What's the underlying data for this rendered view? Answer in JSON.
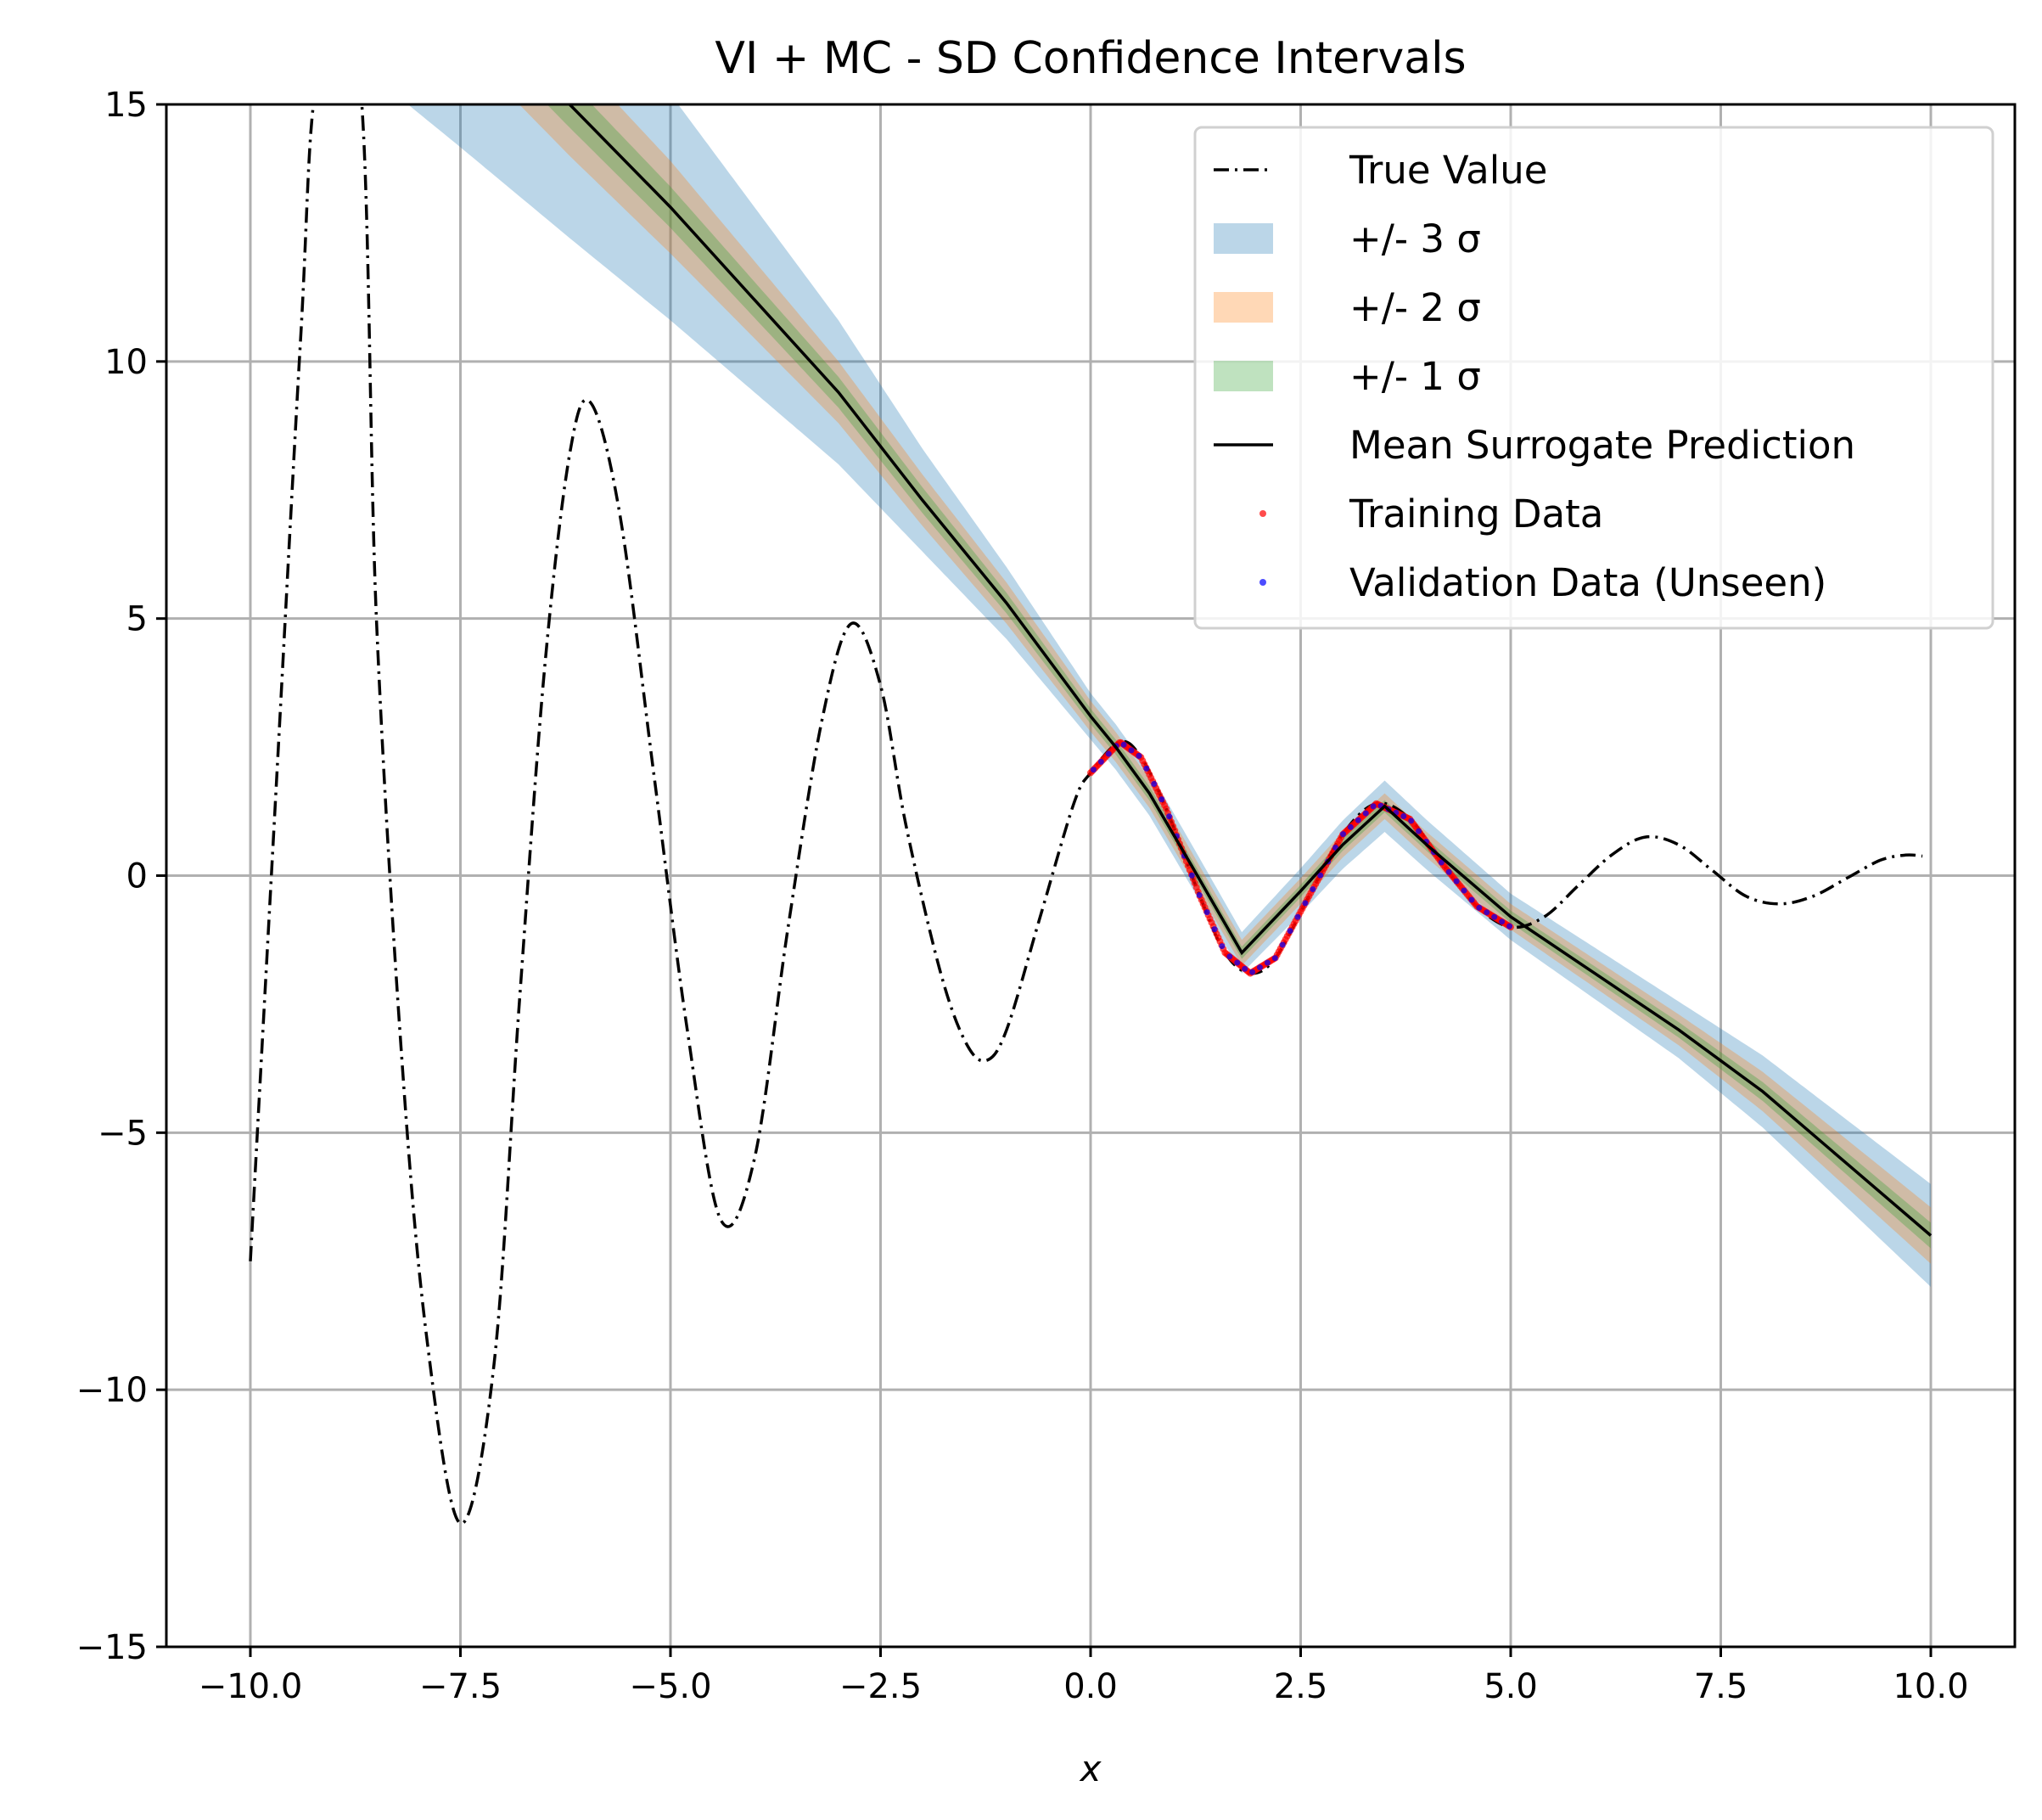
{
  "chart_data": {
    "type": "line",
    "title": "VI + MC - SD Confidence Intervals",
    "xlabel": "x",
    "ylabel": "",
    "xlim": [
      -11,
      11
    ],
    "ylim": [
      -15,
      15
    ],
    "grid": true,
    "legend_placement": "top-right",
    "x_ticks": [
      -10.0,
      -7.5,
      -5.0,
      -2.5,
      0.0,
      2.5,
      5.0,
      7.5,
      10.0
    ],
    "x_tick_labels": [
      "−10.0",
      "−7.5",
      "−5.0",
      "−2.5",
      "0.0",
      "2.5",
      "5.0",
      "7.5",
      "10.0"
    ],
    "y_ticks": [
      -15,
      -10,
      -5,
      0,
      5,
      10,
      15
    ],
    "y_tick_labels": [
      "−15",
      "−10",
      "−5",
      "0",
      "5",
      "10",
      "15"
    ],
    "legend": [
      {
        "key": "true",
        "label": "True Value"
      },
      {
        "key": "s3",
        "label": "+/- 3 σ"
      },
      {
        "key": "s2",
        "label": "+/- 2 σ"
      },
      {
        "key": "s1",
        "label": "+/- 1 σ"
      },
      {
        "key": "mean",
        "label": "Mean Surrogate Prediction"
      },
      {
        "key": "train",
        "label": "Training Data"
      },
      {
        "key": "val",
        "label": "Validation Data (Unseen)"
      }
    ],
    "colors": {
      "true_value": "#000000",
      "band_3sigma": "#1f77b4",
      "band_2sigma": "#ff7f0e",
      "band_1sigma": "#2ca02c",
      "mean": "#000000",
      "training": "#ff0000",
      "validation": "#0000ff"
    },
    "true_value": {
      "function": "(10 - x) * sin(2x) / (x^2 + 5) + 2*cos(x) ... approximated by sampled points",
      "x_range": [
        -10,
        10
      ],
      "points": [
        [
          -10.0,
          -7.5
        ],
        [
          -9.7,
          1.5
        ],
        [
          -9.4,
          10.5
        ],
        [
          -9.2,
          15.5
        ],
        [
          -8.7,
          15.5
        ],
        [
          -8.5,
          5.0
        ],
        [
          -8.2,
          -3.5
        ],
        [
          -7.9,
          -9.0
        ],
        [
          -7.5,
          -12.6
        ],
        [
          -7.1,
          -9.5
        ],
        [
          -6.8,
          -2.5
        ],
        [
          -6.5,
          4.0
        ],
        [
          -6.2,
          8.2
        ],
        [
          -5.95,
          9.2
        ],
        [
          -5.6,
          7.0
        ],
        [
          -5.2,
          2.0
        ],
        [
          -4.8,
          -3.0
        ],
        [
          -4.4,
          -6.7
        ],
        [
          -4.0,
          -5.5
        ],
        [
          -3.6,
          -1.0
        ],
        [
          -3.2,
          3.0
        ],
        [
          -2.85,
          4.9
        ],
        [
          -2.5,
          3.7
        ],
        [
          -2.2,
          1.0
        ],
        [
          -1.8,
          -1.8
        ],
        [
          -1.5,
          -3.2
        ],
        [
          -1.25,
          -3.6
        ],
        [
          -1.0,
          -3.0
        ],
        [
          -0.6,
          -0.8
        ],
        [
          -0.2,
          1.4
        ],
        [
          0.0,
          2.0
        ],
        [
          0.35,
          2.6
        ],
        [
          0.6,
          2.3
        ],
        [
          0.9,
          1.3
        ],
        [
          1.3,
          -0.4
        ],
        [
          1.6,
          -1.5
        ],
        [
          1.9,
          -1.9
        ],
        [
          2.2,
          -1.6
        ],
        [
          2.6,
          -0.4
        ],
        [
          3.0,
          0.8
        ],
        [
          3.4,
          1.4
        ],
        [
          3.8,
          1.1
        ],
        [
          4.2,
          0.2
        ],
        [
          4.6,
          -0.6
        ],
        [
          5.0,
          -1.0
        ],
        [
          5.4,
          -0.8
        ],
        [
          5.8,
          -0.2
        ],
        [
          6.2,
          0.4
        ],
        [
          6.6,
          0.75
        ],
        [
          7.0,
          0.6
        ],
        [
          7.4,
          0.1
        ],
        [
          7.8,
          -0.4
        ],
        [
          8.2,
          -0.55
        ],
        [
          8.6,
          -0.4
        ],
        [
          9.0,
          -0.05
        ],
        [
          9.4,
          0.3
        ],
        [
          9.7,
          0.4
        ],
        [
          9.9,
          0.38
        ]
      ]
    },
    "mean_prediction": {
      "points": [
        [
          -6.2,
          15.0
        ],
        [
          -5.0,
          13.0
        ],
        [
          -4.0,
          11.2
        ],
        [
          -3.0,
          9.4
        ],
        [
          -2.0,
          7.3
        ],
        [
          -1.0,
          5.3
        ],
        [
          0.0,
          3.1
        ],
        [
          0.3,
          2.5
        ],
        [
          0.7,
          1.6
        ],
        [
          1.2,
          0.2
        ],
        [
          1.8,
          -1.5
        ],
        [
          2.5,
          -0.3
        ],
        [
          3.0,
          0.6
        ],
        [
          3.5,
          1.35
        ],
        [
          4.0,
          0.6
        ],
        [
          5.0,
          -0.8
        ],
        [
          6.0,
          -1.9
        ],
        [
          7.0,
          -3.0
        ],
        [
          8.0,
          -4.2
        ],
        [
          9.0,
          -5.6
        ],
        [
          10.0,
          -7.0
        ]
      ]
    },
    "band_half_width_1sigma": [
      [
        -6.2,
        0.45
      ],
      [
        -5.0,
        0.4
      ],
      [
        -4.0,
        0.35
      ],
      [
        -3.0,
        0.3
      ],
      [
        -2.0,
        0.25
      ],
      [
        -1.0,
        0.2
      ],
      [
        0.0,
        0.15
      ],
      [
        1.8,
        0.12
      ],
      [
        3.5,
        0.12
      ],
      [
        5.0,
        0.12
      ],
      [
        7.0,
        0.15
      ],
      [
        10.0,
        0.25
      ]
    ],
    "band_half_width_2sigma": [
      [
        -6.2,
        1.0
      ],
      [
        -5.0,
        0.9
      ],
      [
        -4.0,
        0.75
      ],
      [
        -3.0,
        0.6
      ],
      [
        -2.0,
        0.5
      ],
      [
        -1.0,
        0.4
      ],
      [
        0.0,
        0.3
      ],
      [
        1.8,
        0.25
      ],
      [
        3.5,
        0.25
      ],
      [
        5.0,
        0.25
      ],
      [
        7.0,
        0.3
      ],
      [
        10.0,
        0.55
      ]
    ],
    "band_half_width_3sigma": [
      [
        -9.0,
        3.5
      ],
      [
        -7.5,
        3.0
      ],
      [
        -6.2,
        2.6
      ],
      [
        -5.0,
        2.2
      ],
      [
        -4.0,
        1.8
      ],
      [
        -3.0,
        1.4
      ],
      [
        -2.0,
        1.0
      ],
      [
        -1.0,
        0.7
      ],
      [
        0.0,
        0.45
      ],
      [
        1.8,
        0.4
      ],
      [
        3.5,
        0.5
      ],
      [
        5.0,
        0.45
      ],
      [
        7.0,
        0.55
      ],
      [
        10.0,
        1.0
      ]
    ],
    "training_data": {
      "x_range": [
        0.0,
        5.0
      ],
      "description_points": "follows true value on [0, 5]"
    },
    "validation_data": {
      "x_range": [
        0.0,
        5.0
      ],
      "description_points": "follows true value on [0, 5]"
    }
  }
}
